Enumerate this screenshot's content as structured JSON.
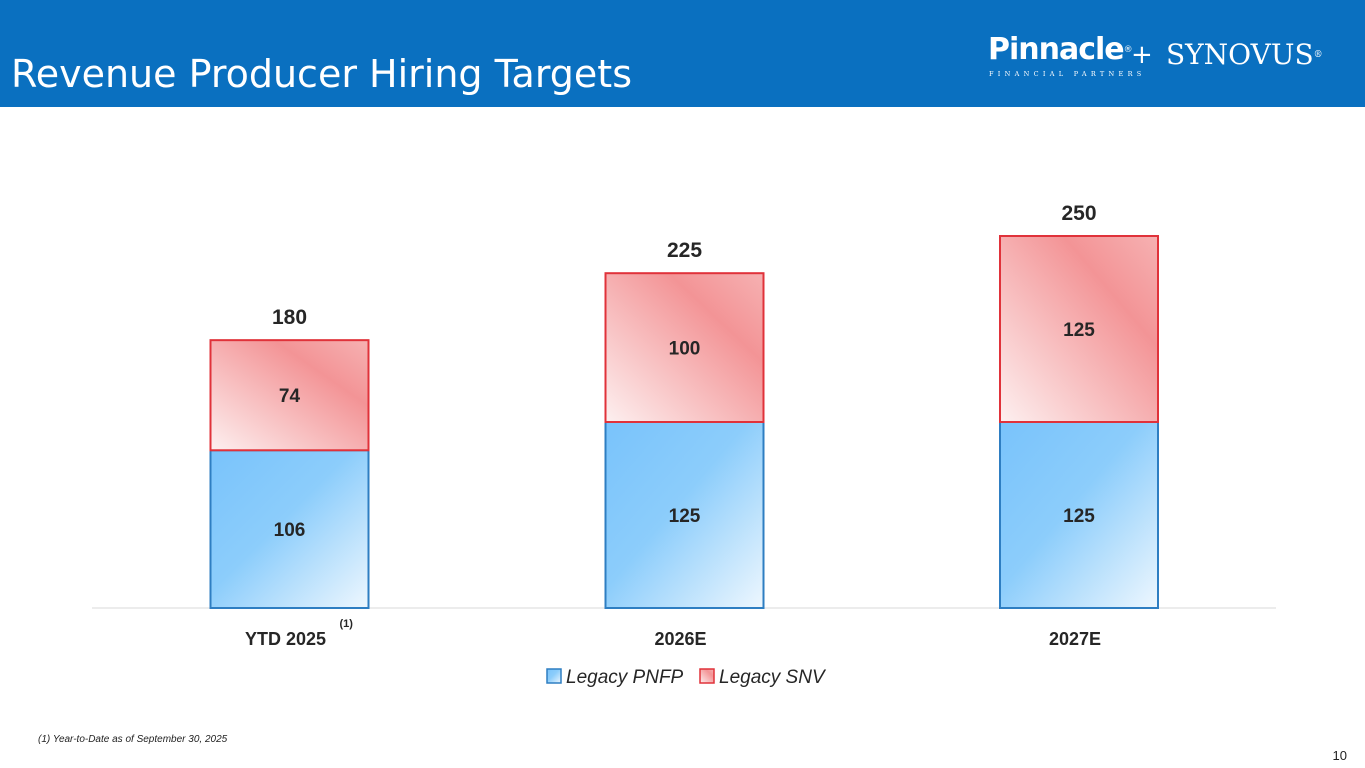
{
  "header": {
    "title": "Revenue Producer Hiring Targets",
    "logo_pinnacle": "Pinnacle",
    "logo_pinnacle_sub": "FINANCIAL PARTNERS",
    "logo_plus": "+",
    "logo_synovus": "SYNOVUS",
    "registered_mark": "®"
  },
  "chart_data": {
    "type": "bar",
    "stacked": true,
    "categories": [
      "YTD 2025",
      "2026E",
      "2027E"
    ],
    "category_superscripts": [
      "(1)",
      "",
      ""
    ],
    "series": [
      {
        "name": "Legacy PNFP",
        "values": [
          106,
          125,
          125
        ],
        "color": "#2e7ec2"
      },
      {
        "name": "Legacy SNV",
        "values": [
          74,
          100,
          125
        ],
        "color": "#e0323a"
      }
    ],
    "totals": [
      180,
      225,
      250
    ],
    "ylim": [
      0,
      250
    ],
    "grid": false,
    "legend_position": "bottom",
    "title": "",
    "xlabel": "",
    "ylabel": ""
  },
  "footnote": "(1) Year-to-Date as of September 30, 2025",
  "page_number": "10"
}
